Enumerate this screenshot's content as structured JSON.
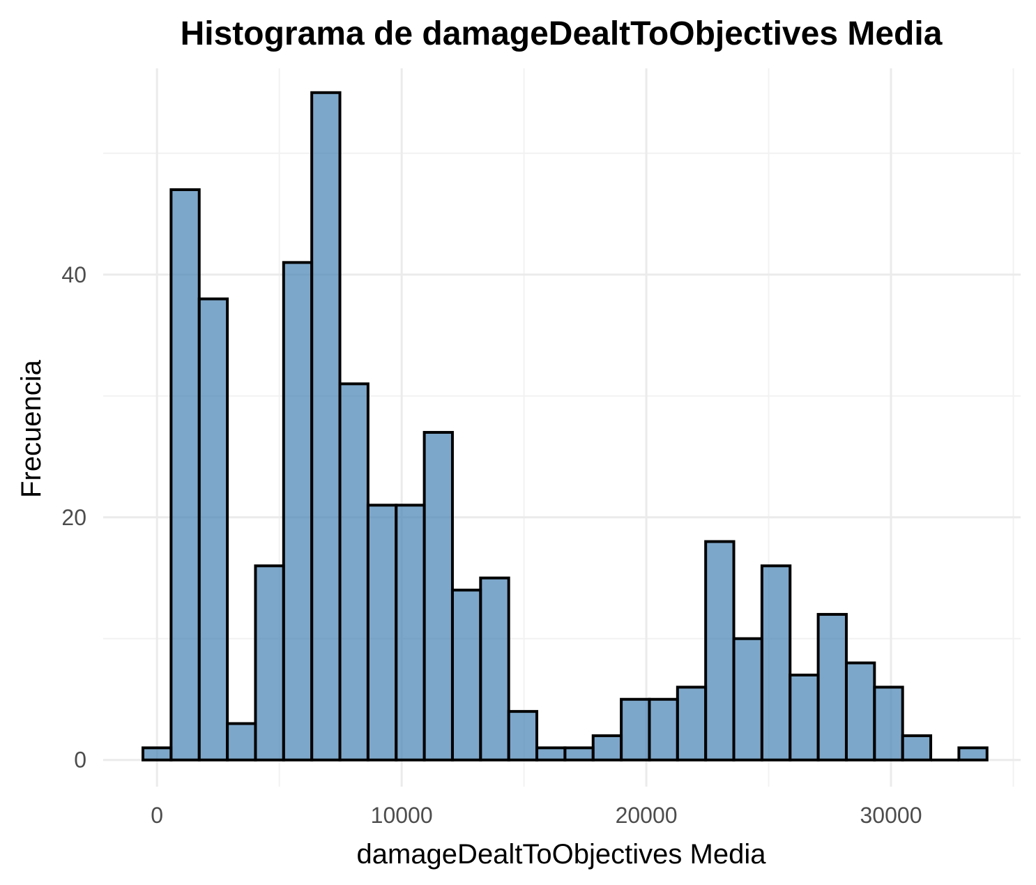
{
  "chart_data": {
    "type": "bar",
    "subtype": "histogram",
    "title": "Histograma de damageDealtToObjectives Media",
    "xlabel": "damageDealtToObjectives Media",
    "ylabel": "Frecuencia",
    "bin_width": 1150,
    "first_bin_center": 0,
    "counts": [
      1,
      47,
      38,
      3,
      16,
      41,
      55,
      31,
      21,
      21,
      27,
      14,
      15,
      4,
      1,
      1,
      2,
      5,
      5,
      6,
      18,
      10,
      16,
      7,
      12,
      8,
      6,
      2,
      0,
      1
    ],
    "xlim": [
      -2200,
      35300
    ],
    "ylim": [
      -2.2,
      57
    ],
    "x_ticks": [
      0,
      10000,
      20000,
      30000
    ],
    "x_tick_labels": [
      "0",
      "10000",
      "20000",
      "30000"
    ],
    "y_ticks": [
      0,
      20,
      40
    ],
    "y_tick_labels": [
      "0",
      "20",
      "40"
    ],
    "grid": true,
    "legend": "none",
    "colors": {
      "fill": "#4682b4",
      "fill_opacity": 0.7,
      "outline": "#000000"
    }
  }
}
